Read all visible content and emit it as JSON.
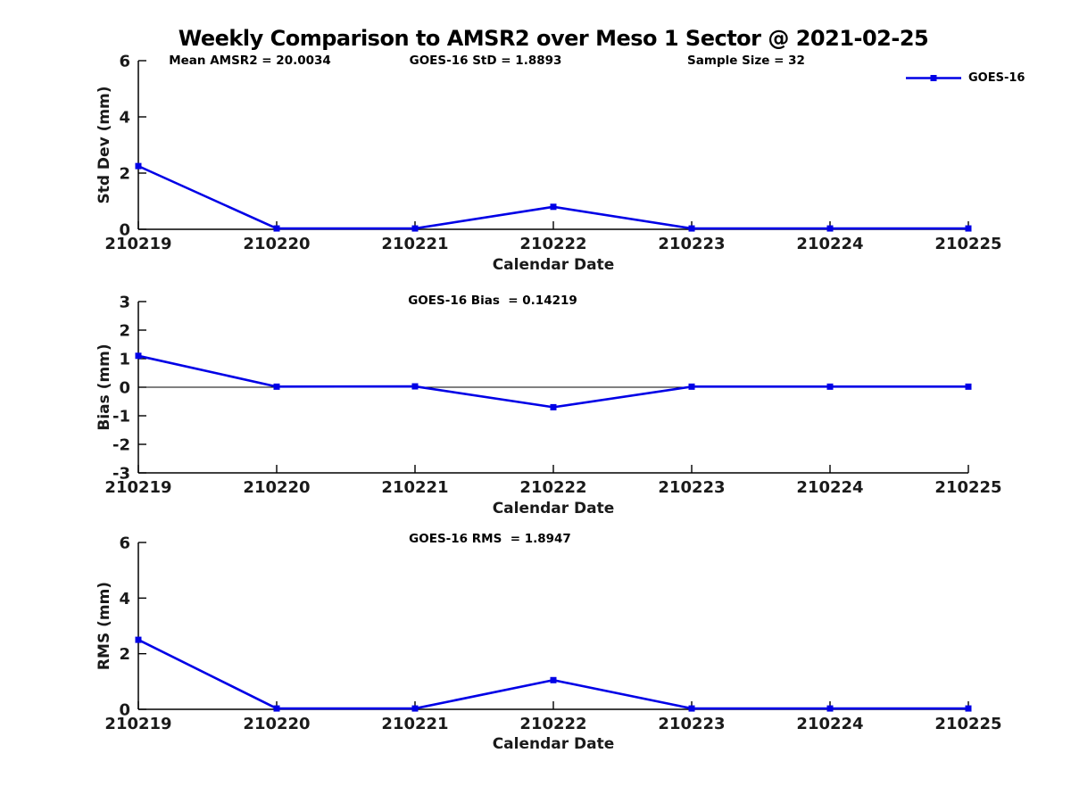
{
  "figure": {
    "title": "Weekly Comparison to AMSR2 over Meso 1 Sector @ 2021-02-25"
  },
  "legend": {
    "label": "GOES-16"
  },
  "colors": {
    "line": "#0000e6",
    "axis": "#000000",
    "text": "#000000",
    "background": "#ffffff"
  },
  "chart_data": [
    {
      "type": "line",
      "id": "std-dev",
      "annotations": [
        "Mean AMSR2 = 20.0034",
        "GOES-16 StD = 1.8893",
        "Sample Size = 32"
      ],
      "x": [
        "210219",
        "210220",
        "210221",
        "210222",
        "210223",
        "210224",
        "210225"
      ],
      "series": [
        {
          "name": "GOES-16",
          "marker": "square",
          "values": [
            2.25,
            0.03,
            0.03,
            0.8,
            0.03,
            0.03,
            0.03
          ]
        }
      ],
      "xlabel": "Calendar Date",
      "ylabel": "Std Dev (mm)",
      "ylim": [
        0,
        6
      ],
      "yticks": [
        0,
        2,
        4,
        6
      ],
      "grid": false,
      "legend_position": "top-right-outside"
    },
    {
      "type": "line",
      "id": "bias",
      "annotations": [
        "GOES-16 Bias  = 0.14219"
      ],
      "x": [
        "210219",
        "210220",
        "210221",
        "210222",
        "210223",
        "210224",
        "210225"
      ],
      "series": [
        {
          "name": "GOES-16",
          "marker": "square",
          "values": [
            1.1,
            0.02,
            0.03,
            -0.7,
            0.02,
            0.02,
            0.02
          ]
        }
      ],
      "xlabel": "Calendar Date",
      "ylabel": "Bias (mm)",
      "ylim": [
        -3,
        3
      ],
      "yticks": [
        -3,
        -2,
        -1,
        0,
        1,
        2,
        3
      ],
      "zero_line": true,
      "grid": false
    },
    {
      "type": "line",
      "id": "rms",
      "annotations": [
        "GOES-16 RMS  = 1.8947"
      ],
      "x": [
        "210219",
        "210220",
        "210221",
        "210222",
        "210223",
        "210224",
        "210225"
      ],
      "series": [
        {
          "name": "GOES-16",
          "marker": "square",
          "values": [
            2.5,
            0.03,
            0.03,
            1.05,
            0.03,
            0.03,
            0.03
          ]
        }
      ],
      "xlabel": "Calendar Date",
      "ylabel": "RMS (mm)",
      "ylim": [
        0,
        6
      ],
      "yticks": [
        0,
        2,
        4,
        6
      ],
      "grid": false
    }
  ]
}
